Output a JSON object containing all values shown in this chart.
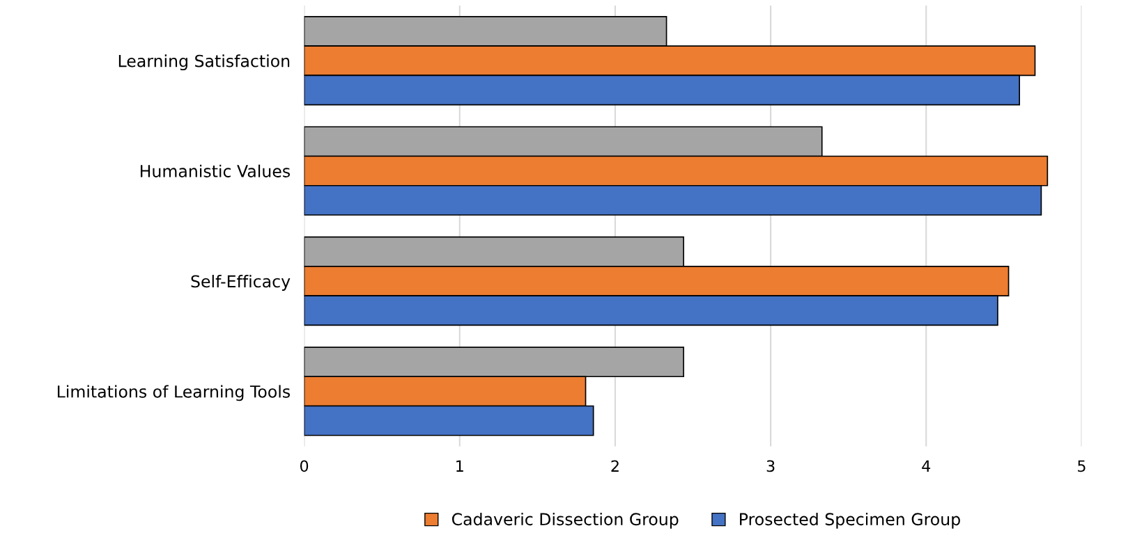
{
  "chart_data": {
    "type": "bar",
    "orientation": "horizontal",
    "categories": [
      "Learning Satisfaction",
      "Humanistic Values",
      "Self-Efficacy",
      "Limitations of Learning Tools"
    ],
    "series": [
      {
        "color": "#a5a5a5",
        "values": [
          2.33,
          3.33,
          2.44,
          2.44
        ]
      },
      {
        "name": "Cadaveric Dissection Group",
        "color": "#ed7d31",
        "values": [
          4.7,
          4.78,
          4.53,
          1.81
        ]
      },
      {
        "name": "Prosected Specimen Group",
        "color": "#4472c4",
        "values": [
          4.6,
          4.74,
          4.46,
          1.86
        ]
      }
    ],
    "xlim": [
      0,
      5
    ],
    "xticks": [
      0,
      1,
      2,
      3,
      4,
      5
    ],
    "grid": "x",
    "legend": "bottom"
  }
}
